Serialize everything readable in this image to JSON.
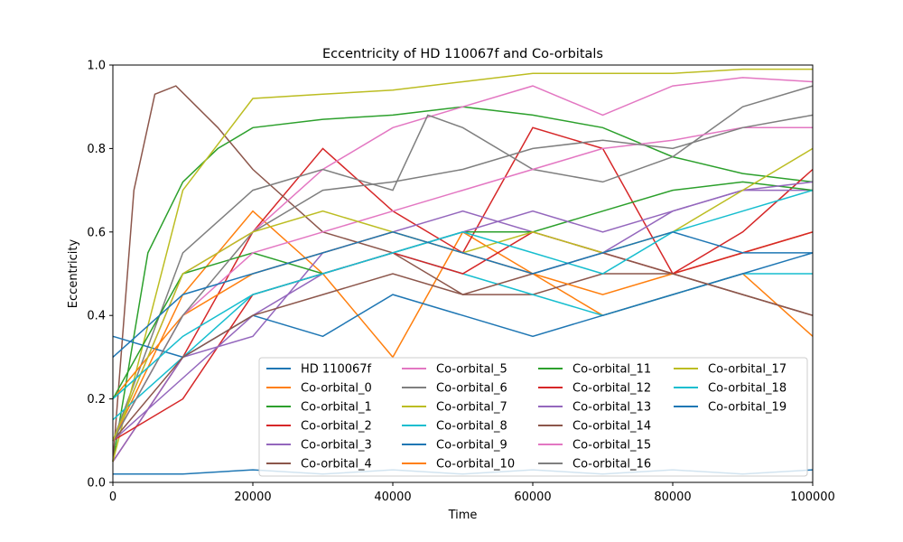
{
  "chart_data": {
    "type": "line",
    "title": "Eccentricity of HD 110067f and Co-orbitals",
    "xlabel": "Time",
    "ylabel": "Eccentricity",
    "xlim": [
      0,
      100000
    ],
    "ylim": [
      0,
      1
    ],
    "xticks": [
      0,
      20000,
      40000,
      60000,
      80000,
      100000
    ],
    "xtick_labels": [
      "0",
      "20000",
      "40000",
      "60000",
      "80000",
      "100000"
    ],
    "yticks": [
      0.0,
      0.2,
      0.4,
      0.6,
      0.8,
      1.0
    ],
    "ytick_labels": [
      "0.0",
      "0.2",
      "0.4",
      "0.6",
      "0.8",
      "1.0"
    ],
    "grid": false,
    "legend": {
      "position": "lower-right",
      "columns": 4
    },
    "series": [
      {
        "name": "HD 110067f",
        "color": "#1f77b4",
        "x": [
          0,
          10000,
          20000,
          30000,
          40000,
          50000,
          60000,
          70000,
          80000,
          90000,
          100000
        ],
        "y": [
          0.02,
          0.02,
          0.03,
          0.02,
          0.03,
          0.02,
          0.03,
          0.02,
          0.03,
          0.02,
          0.03
        ]
      },
      {
        "name": "Co-orbital_0",
        "color": "#ff7f0e",
        "x": [
          0,
          10000,
          20000,
          30000,
          40000,
          50000,
          60000,
          70000,
          80000,
          90000,
          100000
        ],
        "y": [
          0.1,
          0.45,
          0.65,
          0.5,
          0.3,
          0.6,
          0.5,
          0.4,
          0.45,
          0.5,
          0.35
        ]
      },
      {
        "name": "Co-orbital_1",
        "color": "#2ca02c",
        "x": [
          0,
          5000,
          10000,
          15000,
          20000,
          30000,
          40000,
          50000,
          60000,
          70000,
          80000,
          90000,
          100000
        ],
        "y": [
          0.05,
          0.55,
          0.72,
          0.8,
          0.85,
          0.87,
          0.88,
          0.9,
          0.88,
          0.85,
          0.78,
          0.74,
          0.72
        ]
      },
      {
        "name": "Co-orbital_2",
        "color": "#d62728",
        "x": [
          0,
          10000,
          20000,
          30000,
          40000,
          50000,
          60000,
          70000,
          80000,
          90000,
          100000
        ],
        "y": [
          0.05,
          0.3,
          0.6,
          0.8,
          0.65,
          0.55,
          0.85,
          0.8,
          0.5,
          0.6,
          0.75
        ]
      },
      {
        "name": "Co-orbital_3",
        "color": "#9467bd",
        "x": [
          0,
          10000,
          20000,
          30000,
          40000,
          50000,
          60000,
          70000,
          80000,
          90000,
          100000
        ],
        "y": [
          0.05,
          0.3,
          0.35,
          0.55,
          0.6,
          0.65,
          0.6,
          0.55,
          0.65,
          0.7,
          0.7
        ]
      },
      {
        "name": "Co-orbital_4",
        "color": "#8c564b",
        "x": [
          0,
          3000,
          6000,
          9000,
          12000,
          15000,
          20000,
          30000,
          40000,
          50000,
          60000,
          70000,
          80000,
          90000,
          100000
        ],
        "y": [
          0.05,
          0.7,
          0.93,
          0.95,
          0.9,
          0.85,
          0.75,
          0.6,
          0.55,
          0.45,
          0.45,
          0.5,
          0.5,
          0.45,
          0.4
        ]
      },
      {
        "name": "Co-orbital_5",
        "color": "#e377c2",
        "x": [
          0,
          10000,
          20000,
          30000,
          40000,
          50000,
          60000,
          70000,
          80000,
          90000,
          100000
        ],
        "y": [
          0.1,
          0.5,
          0.6,
          0.75,
          0.85,
          0.9,
          0.95,
          0.88,
          0.95,
          0.97,
          0.96
        ]
      },
      {
        "name": "Co-orbital_6",
        "color": "#7f7f7f",
        "x": [
          0,
          10000,
          20000,
          30000,
          40000,
          45000,
          50000,
          60000,
          70000,
          80000,
          90000,
          100000
        ],
        "y": [
          0.1,
          0.55,
          0.7,
          0.75,
          0.7,
          0.88,
          0.85,
          0.75,
          0.72,
          0.78,
          0.9,
          0.95
        ]
      },
      {
        "name": "Co-orbital_7",
        "color": "#bcbd22",
        "x": [
          0,
          10000,
          20000,
          30000,
          40000,
          50000,
          60000,
          70000,
          80000,
          90000,
          100000
        ],
        "y": [
          0.05,
          0.7,
          0.92,
          0.93,
          0.94,
          0.96,
          0.98,
          0.98,
          0.98,
          0.99,
          0.99
        ]
      },
      {
        "name": "Co-orbital_8",
        "color": "#17becf",
        "x": [
          0,
          10000,
          20000,
          30000,
          40000,
          50000,
          60000,
          70000,
          80000,
          90000,
          100000
        ],
        "y": [
          0.15,
          0.3,
          0.45,
          0.5,
          0.55,
          0.5,
          0.45,
          0.4,
          0.45,
          0.5,
          0.5
        ]
      },
      {
        "name": "Co-orbital_9",
        "color": "#1f77b4",
        "x": [
          0,
          10000,
          20000,
          30000,
          40000,
          50000,
          60000,
          70000,
          80000,
          90000,
          100000
        ],
        "y": [
          0.35,
          0.3,
          0.4,
          0.35,
          0.45,
          0.4,
          0.35,
          0.4,
          0.45,
          0.5,
          0.55
        ]
      },
      {
        "name": "Co-orbital_10",
        "color": "#ff7f0e",
        "x": [
          0,
          10000,
          20000,
          30000,
          40000,
          50000,
          60000,
          70000,
          80000,
          90000,
          100000
        ],
        "y": [
          0.2,
          0.4,
          0.5,
          0.55,
          0.6,
          0.55,
          0.5,
          0.45,
          0.5,
          0.55,
          0.6
        ]
      },
      {
        "name": "Co-orbital_11",
        "color": "#2ca02c",
        "x": [
          0,
          10000,
          20000,
          30000,
          40000,
          50000,
          60000,
          70000,
          80000,
          90000,
          100000
        ],
        "y": [
          0.2,
          0.5,
          0.55,
          0.5,
          0.55,
          0.6,
          0.6,
          0.65,
          0.7,
          0.72,
          0.7
        ]
      },
      {
        "name": "Co-orbital_12",
        "color": "#d62728",
        "x": [
          0,
          10000,
          20000,
          30000,
          40000,
          50000,
          60000,
          70000,
          80000,
          90000,
          100000
        ],
        "y": [
          0.1,
          0.2,
          0.45,
          0.5,
          0.55,
          0.5,
          0.6,
          0.55,
          0.5,
          0.55,
          0.6
        ]
      },
      {
        "name": "Co-orbital_13",
        "color": "#9467bd",
        "x": [
          0,
          10000,
          20000,
          30000,
          40000,
          50000,
          60000,
          70000,
          80000,
          90000,
          100000
        ],
        "y": [
          0.1,
          0.25,
          0.4,
          0.5,
          0.55,
          0.6,
          0.65,
          0.6,
          0.65,
          0.7,
          0.72
        ]
      },
      {
        "name": "Co-orbital_14",
        "color": "#8c564b",
        "x": [
          0,
          10000,
          20000,
          30000,
          40000,
          50000,
          60000,
          70000,
          80000,
          90000,
          100000
        ],
        "y": [
          0.1,
          0.3,
          0.4,
          0.45,
          0.5,
          0.45,
          0.5,
          0.55,
          0.5,
          0.45,
          0.4
        ]
      },
      {
        "name": "Co-orbital_15",
        "color": "#e377c2",
        "x": [
          0,
          10000,
          20000,
          30000,
          40000,
          50000,
          60000,
          70000,
          80000,
          90000,
          100000
        ],
        "y": [
          0.1,
          0.4,
          0.55,
          0.6,
          0.65,
          0.7,
          0.75,
          0.8,
          0.82,
          0.85,
          0.85
        ]
      },
      {
        "name": "Co-orbital_16",
        "color": "#7f7f7f",
        "x": [
          0,
          10000,
          20000,
          30000,
          40000,
          50000,
          60000,
          70000,
          80000,
          90000,
          100000
        ],
        "y": [
          0.1,
          0.4,
          0.6,
          0.7,
          0.72,
          0.75,
          0.8,
          0.82,
          0.8,
          0.85,
          0.88
        ]
      },
      {
        "name": "Co-orbital_17",
        "color": "#bcbd22",
        "x": [
          0,
          10000,
          20000,
          30000,
          40000,
          50000,
          60000,
          70000,
          80000,
          90000,
          100000
        ],
        "y": [
          0.1,
          0.5,
          0.6,
          0.65,
          0.6,
          0.55,
          0.6,
          0.55,
          0.6,
          0.7,
          0.8
        ]
      },
      {
        "name": "Co-orbital_18",
        "color": "#17becf",
        "x": [
          0,
          10000,
          20000,
          30000,
          40000,
          50000,
          60000,
          70000,
          80000,
          90000,
          100000
        ],
        "y": [
          0.2,
          0.35,
          0.45,
          0.5,
          0.55,
          0.6,
          0.55,
          0.5,
          0.6,
          0.65,
          0.7
        ]
      },
      {
        "name": "Co-orbital_19",
        "color": "#1f77b4",
        "x": [
          0,
          10000,
          20000,
          30000,
          40000,
          50000,
          60000,
          70000,
          80000,
          90000,
          100000
        ],
        "y": [
          0.3,
          0.45,
          0.5,
          0.55,
          0.6,
          0.55,
          0.5,
          0.55,
          0.6,
          0.55,
          0.55
        ]
      }
    ]
  }
}
